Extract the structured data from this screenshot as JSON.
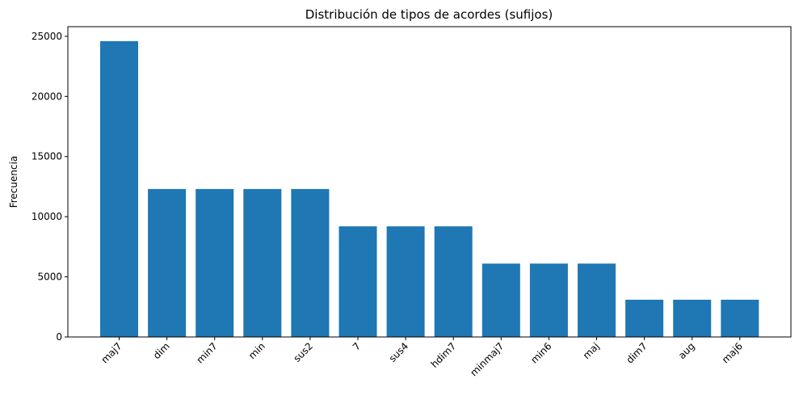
{
  "chart_data": {
    "type": "bar",
    "title": "Distribución de tipos de acordes (sufijos)",
    "xlabel": "",
    "ylabel": "Frecuencia",
    "categories": [
      "maj7",
      "dim",
      "min7",
      "min",
      "sus2",
      "7",
      "sus4",
      "hdim7",
      "minmaj7",
      "min6",
      "maj",
      "dim7",
      "aug",
      "maj6"
    ],
    "values": [
      24600,
      12300,
      12300,
      12300,
      12300,
      9200,
      9200,
      9200,
      6100,
      6100,
      6100,
      3100,
      3100,
      3100
    ],
    "ylim": [
      0,
      25800
    ],
    "yticks": [
      0,
      5000,
      10000,
      15000,
      20000,
      25000
    ],
    "grid": false,
    "legend": "none",
    "bar_color": "#1f77b4"
  }
}
